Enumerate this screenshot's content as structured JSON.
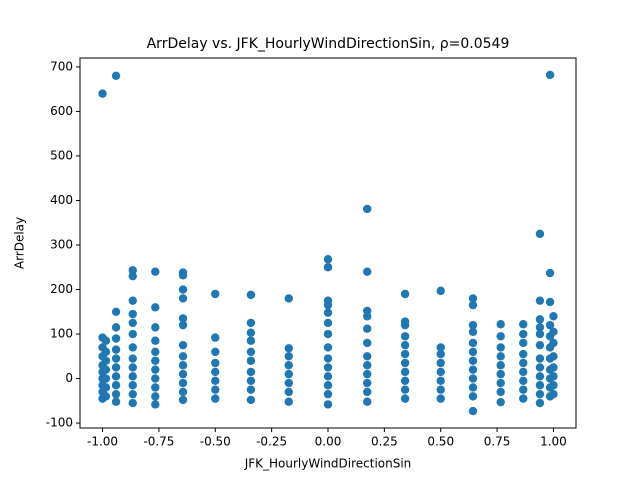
{
  "chart_data": {
    "type": "scatter",
    "title": "ArrDelay vs. JFK_HourlyWindDirectionSin, ρ=0.0549",
    "x_label": "JFK_HourlyWindDirectionSin",
    "y_label": "ArrDelay",
    "color": "#1f77b4",
    "xlim": [
      -1.1,
      1.1
    ],
    "ylim": [
      -111,
      720
    ],
    "xticks": [
      {
        "value": -1,
        "label": "-1.00"
      },
      {
        "value": -0.75,
        "label": "-0.75"
      },
      {
        "value": -0.5,
        "label": "-0.50"
      },
      {
        "value": -0.25,
        "label": "-0.25"
      },
      {
        "value": 0,
        "label": "0.00"
      },
      {
        "value": 0.25,
        "label": "0.25"
      },
      {
        "value": 0.5,
        "label": "0.50"
      },
      {
        "value": 0.75,
        "label": "0.75"
      },
      {
        "value": 1,
        "label": "1.00"
      }
    ],
    "yticks": [
      -100,
      0,
      100,
      200,
      300,
      400,
      500,
      600,
      700
    ],
    "x": [
      -1,
      -1,
      -1,
      -1,
      -1,
      -1,
      -1,
      -1,
      -1,
      -1,
      -0.985,
      -0.985,
      -0.985,
      -0.985,
      -0.985,
      -0.985,
      -0.985,
      -0.94,
      -0.94,
      -0.94,
      -0.94,
      -0.94,
      -0.94,
      -0.94,
      -0.94,
      -0.94,
      -0.94,
      -0.94,
      -0.866,
      -0.866,
      -0.866,
      -0.866,
      -0.866,
      -0.866,
      -0.866,
      -0.866,
      -0.866,
      -0.866,
      -0.866,
      -0.866,
      -0.866,
      -0.766,
      -0.766,
      -0.766,
      -0.766,
      -0.766,
      -0.766,
      -0.766,
      -0.766,
      -0.766,
      -0.766,
      -0.766,
      -0.643,
      -0.643,
      -0.643,
      -0.643,
      -0.643,
      -0.643,
      -0.643,
      -0.643,
      -0.643,
      -0.643,
      -0.643,
      -0.643,
      -0.643,
      -0.5,
      -0.5,
      -0.5,
      -0.5,
      -0.5,
      -0.5,
      -0.5,
      -0.5,
      -0.342,
      -0.342,
      -0.342,
      -0.342,
      -0.342,
      -0.342,
      -0.342,
      -0.342,
      -0.342,
      -0.342,
      -0.174,
      -0.174,
      -0.174,
      -0.174,
      -0.174,
      -0.174,
      -0.174,
      -0.174,
      0,
      0,
      0,
      0,
      0,
      0,
      0,
      0,
      0,
      0,
      0,
      0,
      0,
      0,
      0.174,
      0.174,
      0.174,
      0.174,
      0.174,
      0.174,
      0.174,
      0.174,
      0.174,
      0.174,
      0.174,
      0.174,
      0.342,
      0.342,
      0.342,
      0.342,
      0.342,
      0.342,
      0.342,
      0.342,
      0.342,
      0.342,
      0.342,
      0.5,
      0.5,
      0.5,
      0.5,
      0.5,
      0.5,
      0.5,
      0.5,
      0.643,
      0.643,
      0.643,
      0.643,
      0.643,
      0.643,
      0.643,
      0.643,
      0.643,
      0.643,
      0.643,
      0.643,
      0.766,
      0.766,
      0.766,
      0.766,
      0.766,
      0.766,
      0.766,
      0.766,
      0.766,
      0.866,
      0.866,
      0.866,
      0.866,
      0.866,
      0.866,
      0.866,
      0.866,
      0.866,
      0.94,
      0.94,
      0.94,
      0.94,
      0.94,
      0.94,
      0.94,
      0.94,
      0.94,
      0.94,
      0.94,
      0.94,
      0.985,
      0.985,
      0.985,
      0.985,
      0.985,
      0.985,
      0.985,
      0.985,
      0.985,
      0.985,
      0.985,
      1,
      1,
      1,
      1,
      1,
      1,
      1,
      1
    ],
    "values": [
      -45,
      -30,
      -15,
      0,
      15,
      30,
      50,
      70,
      92,
      640,
      -40,
      -20,
      0,
      20,
      40,
      60,
      85,
      -52,
      -35,
      -15,
      5,
      25,
      45,
      65,
      90,
      115,
      150,
      680,
      -55,
      -35,
      -15,
      5,
      25,
      45,
      70,
      100,
      125,
      145,
      175,
      230,
      243,
      -58,
      -40,
      -20,
      0,
      20,
      40,
      60,
      85,
      115,
      160,
      240,
      -48,
      -30,
      -10,
      10,
      30,
      50,
      75,
      120,
      135,
      180,
      200,
      232,
      238,
      -45,
      -25,
      -5,
      15,
      35,
      60,
      92,
      190,
      -48,
      -25,
      -5,
      15,
      40,
      60,
      85,
      103,
      125,
      188,
      -52,
      -30,
      -10,
      10,
      30,
      50,
      68,
      180,
      -58,
      -35,
      -15,
      5,
      25,
      45,
      70,
      100,
      125,
      148,
      165,
      175,
      250,
      268,
      -52,
      -30,
      -10,
      10,
      30,
      50,
      80,
      112,
      140,
      152,
      240,
      381,
      -45,
      -25,
      -5,
      15,
      35,
      55,
      75,
      95,
      120,
      128,
      190,
      -45,
      -25,
      -5,
      15,
      35,
      55,
      70,
      197,
      -73,
      -40,
      -20,
      0,
      20,
      40,
      60,
      80,
      105,
      120,
      165,
      180,
      -53,
      -30,
      -10,
      10,
      30,
      50,
      70,
      95,
      122,
      -45,
      -25,
      -5,
      15,
      35,
      55,
      80,
      100,
      122,
      -55,
      -35,
      -15,
      5,
      25,
      45,
      75,
      100,
      115,
      133,
      175,
      325,
      -40,
      -20,
      0,
      20,
      45,
      70,
      95,
      120,
      172,
      237,
      682,
      -35,
      -15,
      5,
      25,
      50,
      80,
      105,
      140
    ]
  }
}
